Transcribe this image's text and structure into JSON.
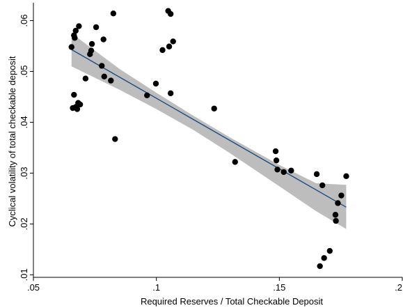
{
  "chart_data": {
    "type": "scatter",
    "xlabel": "Required Reserves / Total Checkable Deposit",
    "ylabel": "Cyclical volatility of total checkable deposit",
    "xlim": [
      0.05,
      0.2
    ],
    "ylim": [
      0.0095,
      0.0635
    ],
    "x_ticks": [
      0.05,
      0.1,
      0.15,
      0.2
    ],
    "x_tick_labels": [
      ".05",
      ".1",
      ".15",
      ".2"
    ],
    "y_ticks": [
      0.01,
      0.02,
      0.03,
      0.04,
      0.05,
      0.06
    ],
    "y_tick_labels": [
      ".01",
      ".02",
      ".03",
      ".04",
      ".05",
      ".06"
    ],
    "grid": false,
    "legend": "none",
    "colors": {
      "points": "#000000",
      "fit_line": "#1a4d80",
      "ci_band": "#bdbdbd"
    },
    "points": [
      {
        "x": 0.0655,
        "y": 0.0548
      },
      {
        "x": 0.0665,
        "y": 0.0571
      },
      {
        "x": 0.0672,
        "y": 0.058
      },
      {
        "x": 0.0668,
        "y": 0.0566
      },
      {
        "x": 0.0685,
        "y": 0.0589
      },
      {
        "x": 0.0665,
        "y": 0.0454
      },
      {
        "x": 0.066,
        "y": 0.0428
      },
      {
        "x": 0.0672,
        "y": 0.043
      },
      {
        "x": 0.0678,
        "y": 0.0426
      },
      {
        "x": 0.0682,
        "y": 0.0438
      },
      {
        "x": 0.069,
        "y": 0.0435
      },
      {
        "x": 0.0712,
        "y": 0.0486
      },
      {
        "x": 0.073,
        "y": 0.0534
      },
      {
        "x": 0.0735,
        "y": 0.0541
      },
      {
        "x": 0.0738,
        "y": 0.0554
      },
      {
        "x": 0.0755,
        "y": 0.0587
      },
      {
        "x": 0.0778,
        "y": 0.0511
      },
      {
        "x": 0.0785,
        "y": 0.0563
      },
      {
        "x": 0.0788,
        "y": 0.049
      },
      {
        "x": 0.0815,
        "y": 0.0482
      },
      {
        "x": 0.0825,
        "y": 0.0614
      },
      {
        "x": 0.0832,
        "y": 0.0367
      },
      {
        "x": 0.0962,
        "y": 0.0453
      },
      {
        "x": 0.0998,
        "y": 0.0476
      },
      {
        "x": 0.1025,
        "y": 0.0542
      },
      {
        "x": 0.1048,
        "y": 0.0619
      },
      {
        "x": 0.1058,
        "y": 0.0613
      },
      {
        "x": 0.1052,
        "y": 0.0549
      },
      {
        "x": 0.1068,
        "y": 0.0559
      },
      {
        "x": 0.1058,
        "y": 0.0457
      },
      {
        "x": 0.1235,
        "y": 0.0427
      },
      {
        "x": 0.132,
        "y": 0.0322
      },
      {
        "x": 0.1485,
        "y": 0.0343
      },
      {
        "x": 0.1488,
        "y": 0.0325
      },
      {
        "x": 0.1492,
        "y": 0.0307
      },
      {
        "x": 0.1518,
        "y": 0.0302
      },
      {
        "x": 0.1548,
        "y": 0.0305
      },
      {
        "x": 0.1652,
        "y": 0.0298
      },
      {
        "x": 0.1675,
        "y": 0.0276
      },
      {
        "x": 0.1665,
        "y": 0.0117
      },
      {
        "x": 0.1682,
        "y": 0.0133
      },
      {
        "x": 0.1705,
        "y": 0.0147
      },
      {
        "x": 0.1728,
        "y": 0.0218
      },
      {
        "x": 0.173,
        "y": 0.0206
      },
      {
        "x": 0.1738,
        "y": 0.0241
      },
      {
        "x": 0.1752,
        "y": 0.0256
      },
      {
        "x": 0.1772,
        "y": 0.0294
      }
    ],
    "fit_line": {
      "x": [
        0.0655,
        0.1772
      ],
      "y": [
        0.0543,
        0.0233
      ]
    },
    "ci_band": {
      "x": [
        0.0655,
        0.085,
        0.1,
        0.115,
        0.13,
        0.15,
        0.165,
        0.1772
      ],
      "upper": [
        0.0575,
        0.0505,
        0.0458,
        0.0413,
        0.037,
        0.0316,
        0.028,
        0.0277
      ],
      "lower": [
        0.051,
        0.0464,
        0.0426,
        0.0385,
        0.0339,
        0.0274,
        0.0225,
        0.019
      ]
    }
  }
}
